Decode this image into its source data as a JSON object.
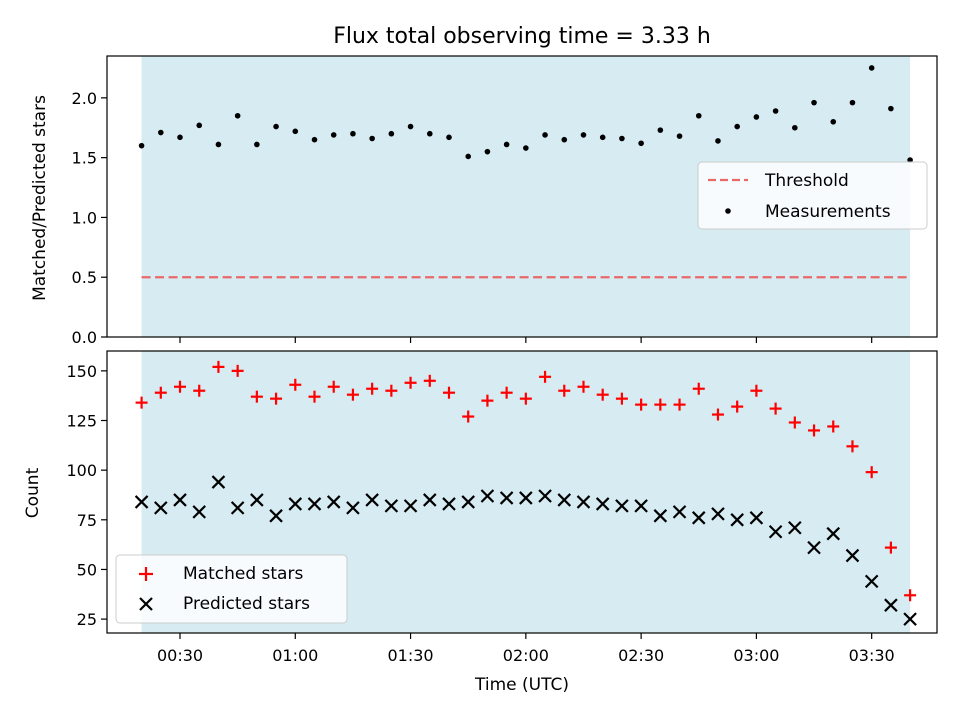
{
  "chart_data": [
    {
      "type": "scatter",
      "title": "Flux total observing time = 3.33 h",
      "xlabel": "",
      "ylabel": "Matched/Predicted stars",
      "xlim": [
        "00:11",
        "03:47"
      ],
      "ylim": [
        0,
        2.35
      ],
      "yticks": [
        0.0,
        0.5,
        1.0,
        1.5,
        2.0
      ],
      "ytick_labels": [
        "0.0",
        "0.5",
        "1.0",
        "1.5",
        "2.0"
      ],
      "shaded_span": [
        "00:20",
        "03:40"
      ],
      "shade_color": "#add8e6",
      "legend_position": "center-right",
      "series": [
        {
          "name": "Threshold",
          "kind": "hline",
          "style": "dashed",
          "color": "#e9686a",
          "y": 0.5,
          "x_range": [
            "00:20",
            "03:40"
          ]
        },
        {
          "name": "Measurements",
          "kind": "scatter",
          "marker": "dot",
          "color": "#000000",
          "x": [
            "00:20",
            "00:25",
            "00:30",
            "00:35",
            "00:40",
            "00:45",
            "00:50",
            "00:55",
            "01:00",
            "01:05",
            "01:10",
            "01:15",
            "01:20",
            "01:25",
            "01:30",
            "01:35",
            "01:40",
            "01:45",
            "01:50",
            "01:55",
            "02:00",
            "02:05",
            "02:10",
            "02:15",
            "02:20",
            "02:25",
            "02:30",
            "02:35",
            "02:40",
            "02:45",
            "02:50",
            "02:55",
            "03:00",
            "03:05",
            "03:10",
            "03:15",
            "03:20",
            "03:25",
            "03:30",
            "03:35",
            "03:40"
          ],
          "y": [
            1.6,
            1.71,
            1.67,
            1.77,
            1.61,
            1.85,
            1.61,
            1.76,
            1.72,
            1.65,
            1.69,
            1.7,
            1.66,
            1.7,
            1.76,
            1.7,
            1.67,
            1.51,
            1.55,
            1.61,
            1.58,
            1.69,
            1.65,
            1.69,
            1.67,
            1.66,
            1.62,
            1.73,
            1.68,
            1.85,
            1.64,
            1.76,
            1.84,
            1.89,
            1.75,
            1.96,
            1.8,
            1.96,
            2.25,
            1.91,
            1.48
          ]
        }
      ]
    },
    {
      "type": "scatter",
      "title": "",
      "xlabel": "Time (UTC)",
      "ylabel": "Count",
      "xlim": [
        "00:11",
        "03:47"
      ],
      "ylim": [
        18,
        160
      ],
      "xticks": [
        "00:30",
        "01:00",
        "01:30",
        "02:00",
        "02:30",
        "03:00",
        "03:30"
      ],
      "yticks": [
        25,
        50,
        75,
        100,
        125,
        150
      ],
      "ytick_labels": [
        "25",
        "50",
        "75",
        "100",
        "125",
        "150"
      ],
      "shaded_span": [
        "00:20",
        "03:40"
      ],
      "shade_color": "#add8e6",
      "legend_position": "lower-left",
      "series": [
        {
          "name": "Matched stars",
          "kind": "scatter",
          "marker": "plus",
          "color": "#ff0000",
          "x": [
            "00:20",
            "00:25",
            "00:30",
            "00:35",
            "00:40",
            "00:45",
            "00:50",
            "00:55",
            "01:00",
            "01:05",
            "01:10",
            "01:15",
            "01:20",
            "01:25",
            "01:30",
            "01:35",
            "01:40",
            "01:45",
            "01:50",
            "01:55",
            "02:00",
            "02:05",
            "02:10",
            "02:15",
            "02:20",
            "02:25",
            "02:30",
            "02:35",
            "02:40",
            "02:45",
            "02:50",
            "02:55",
            "03:00",
            "03:05",
            "03:10",
            "03:15",
            "03:20",
            "03:25",
            "03:30",
            "03:35",
            "03:40"
          ],
          "y": [
            134,
            139,
            142,
            140,
            152,
            150,
            137,
            136,
            143,
            137,
            142,
            138,
            141,
            140,
            144,
            145,
            139,
            127,
            135,
            139,
            136,
            147,
            140,
            142,
            138,
            136,
            133,
            133,
            133,
            141,
            128,
            132,
            140,
            131,
            124,
            120,
            122,
            112,
            99,
            61,
            37
          ]
        },
        {
          "name": "Predicted stars",
          "kind": "scatter",
          "marker": "x",
          "color": "#000000",
          "x": [
            "00:20",
            "00:25",
            "00:30",
            "00:35",
            "00:40",
            "00:45",
            "00:50",
            "00:55",
            "01:00",
            "01:05",
            "01:10",
            "01:15",
            "01:20",
            "01:25",
            "01:30",
            "01:35",
            "01:40",
            "01:45",
            "01:50",
            "01:55",
            "02:00",
            "02:05",
            "02:10",
            "02:15",
            "02:20",
            "02:25",
            "02:30",
            "02:35",
            "02:40",
            "02:45",
            "02:50",
            "02:55",
            "03:00",
            "03:05",
            "03:10",
            "03:15",
            "03:20",
            "03:25",
            "03:30",
            "03:35",
            "03:40"
          ],
          "y": [
            84,
            81,
            85,
            79,
            94,
            81,
            85,
            77,
            83,
            83,
            84,
            81,
            85,
            82,
            82,
            85,
            83,
            84,
            87,
            86,
            86,
            87,
            85,
            84,
            83,
            82,
            82,
            77,
            79,
            76,
            78,
            75,
            76,
            69,
            71,
            61,
            68,
            57,
            44,
            32,
            25
          ]
        }
      ]
    }
  ]
}
